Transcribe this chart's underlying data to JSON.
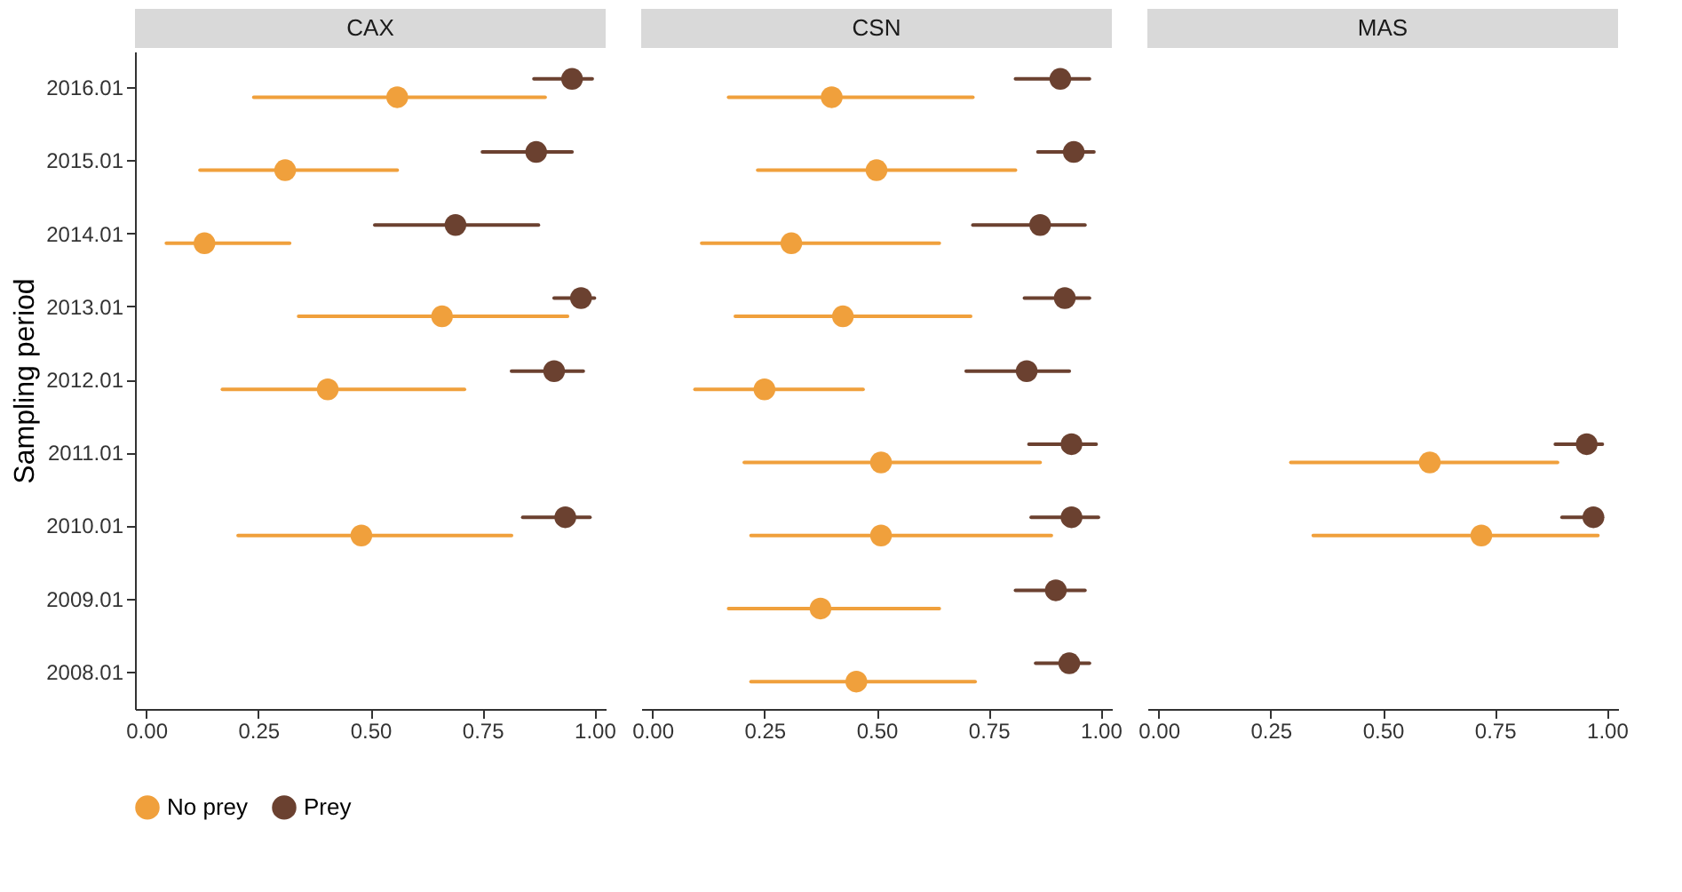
{
  "chart_data": [
    {
      "type": "scatter",
      "orientation": "horizontal",
      "title": "CAX",
      "ylabel": "Sampling period",
      "legend": "bottom",
      "categories": [
        "2016.01",
        "2015.01",
        "2014.01",
        "2013.01",
        "2012.01",
        "2011.01",
        "2010.01",
        "2009.01",
        "2008.01"
      ],
      "xlim": [
        -0.025,
        1.025
      ],
      "xticks": [
        {
          "value": 0,
          "label": "0.00"
        },
        {
          "value": 0.25,
          "label": "0.25"
        },
        {
          "value": 0.5,
          "label": "0.50"
        },
        {
          "value": 0.75,
          "label": "0.75"
        },
        {
          "value": 1,
          "label": "1.00"
        }
      ],
      "grid": false,
      "marker": "circle",
      "series": [
        {
          "name": "No prey",
          "color": "#f0a03c",
          "values": [
            0.56,
            0.31,
            0.13,
            0.66,
            0.405,
            null,
            0.48,
            null,
            null
          ],
          "errors": [
            [
              0.24,
              0.89
            ],
            [
              0.12,
              0.56
            ],
            [
              0.045,
              0.32
            ],
            [
              0.34,
              0.94
            ],
            [
              0.17,
              0.71
            ],
            null,
            [
              0.205,
              0.815
            ],
            null,
            null
          ]
        },
        {
          "name": "Prey",
          "color": "#6b4130",
          "values": [
            0.95,
            0.87,
            0.69,
            0.97,
            0.91,
            null,
            0.935,
            null,
            null
          ],
          "errors": [
            [
              0.865,
              0.995
            ],
            [
              0.75,
              0.95
            ],
            [
              0.51,
              0.875
            ],
            [
              0.91,
              1.0
            ],
            [
              0.815,
              0.975
            ],
            null,
            [
              0.84,
              0.99
            ],
            null,
            null
          ]
        }
      ]
    },
    {
      "type": "scatter",
      "orientation": "horizontal",
      "title": "CSN",
      "tick_labels": "x",
      "categories": [
        "2016.01",
        "2015.01",
        "2014.01",
        "2013.01",
        "2012.01",
        "2011.01",
        "2010.01",
        "2009.01",
        "2008.01"
      ],
      "xlim": [
        -0.025,
        1.025
      ],
      "xticks": [
        {
          "value": 0,
          "label": "0.00"
        },
        {
          "value": 0.25,
          "label": "0.25"
        },
        {
          "value": 0.5,
          "label": "0.50"
        },
        {
          "value": 0.75,
          "label": "0.75"
        },
        {
          "value": 1,
          "label": "1.00"
        }
      ],
      "grid": false,
      "marker": "circle",
      "series": [
        {
          "color": "#f0a03c",
          "values": [
            0.4,
            0.5,
            0.31,
            0.425,
            0.25,
            0.51,
            0.51,
            0.375,
            0.455
          ],
          "errors": [
            [
              0.17,
              0.715
            ],
            [
              0.235,
              0.81
            ],
            [
              0.11,
              0.64
            ],
            [
              0.185,
              0.71
            ],
            [
              0.095,
              0.47
            ],
            [
              0.205,
              0.865
            ],
            [
              0.22,
              0.89
            ],
            [
              0.17,
              0.64
            ],
            [
              0.22,
              0.72
            ]
          ]
        },
        {
          "color": "#6b4130",
          "values": [
            0.91,
            0.94,
            0.865,
            0.92,
            0.835,
            0.935,
            0.935,
            0.9,
            0.93
          ],
          "errors": [
            [
              0.81,
              0.975
            ],
            [
              0.86,
              0.985
            ],
            [
              0.715,
              0.965
            ],
            [
              0.83,
              0.975
            ],
            [
              0.7,
              0.93
            ],
            [
              0.84,
              0.99
            ],
            [
              0.845,
              0.995
            ],
            [
              0.81,
              0.965
            ],
            [
              0.855,
              0.975
            ]
          ]
        }
      ]
    },
    {
      "type": "scatter",
      "orientation": "horizontal",
      "title": "MAS",
      "tick_labels": "x",
      "categories": [
        "2016.01",
        "2015.01",
        "2014.01",
        "2013.01",
        "2012.01",
        "2011.01",
        "2010.01",
        "2009.01",
        "2008.01"
      ],
      "xlim": [
        -0.025,
        1.025
      ],
      "xticks": [
        {
          "value": 0,
          "label": "0.00"
        },
        {
          "value": 0.25,
          "label": "0.25"
        },
        {
          "value": 0.5,
          "label": "0.50"
        },
        {
          "value": 0.75,
          "label": "0.75"
        },
        {
          "value": 1,
          "label": "1.00"
        }
      ],
      "grid": false,
      "marker": "circle",
      "series": [
        {
          "color": "#f0a03c",
          "values": [
            null,
            null,
            null,
            null,
            null,
            0.605,
            0.72,
            null,
            null
          ],
          "errors": [
            null,
            null,
            null,
            null,
            null,
            [
              0.295,
              0.89
            ],
            [
              0.345,
              0.98
            ],
            null,
            null
          ]
        },
        {
          "color": "#6b4130",
          "values": [
            null,
            null,
            null,
            null,
            null,
            0.955,
            0.97,
            null,
            null
          ],
          "errors": [
            null,
            null,
            null,
            null,
            null,
            [
              0.885,
              0.99
            ],
            [
              0.9,
              0.99
            ],
            null,
            null
          ]
        }
      ]
    }
  ]
}
